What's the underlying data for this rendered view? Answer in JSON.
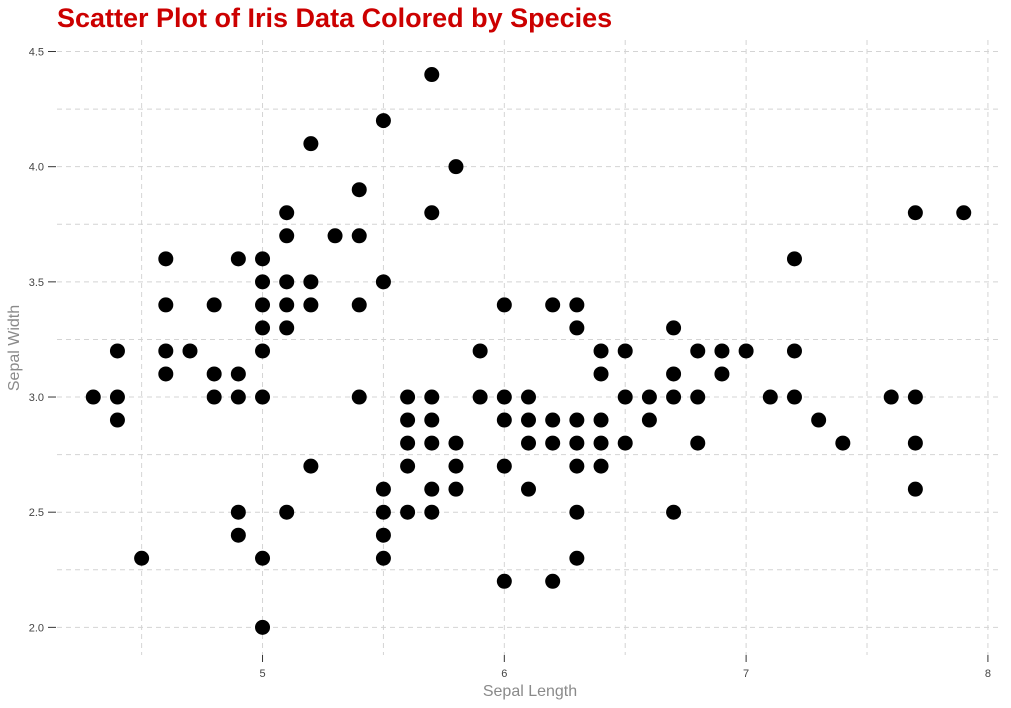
{
  "chart_data": {
    "type": "scatter",
    "title": "Scatter Plot of Iris Data Colored by Species",
    "xlabel": "Sepal Length",
    "ylabel": "Sepal Width",
    "xlim": [
      4.15,
      8.05
    ],
    "ylim": [
      1.88,
      4.55
    ],
    "xticks": [
      5,
      6,
      7,
      8
    ],
    "xtick_labels": [
      "5",
      "6",
      "7",
      "8"
    ],
    "yticks": [
      2.0,
      2.5,
      3.0,
      3.5,
      4.0,
      4.5
    ],
    "ytick_labels": [
      "2.0",
      "2.5",
      "3.0",
      "3.5",
      "4.0",
      "4.5"
    ],
    "x_minor_grid": [
      4.5,
      5.5,
      6.5,
      7.5
    ],
    "y_minor_grid": [
      2.25,
      2.75,
      3.25,
      3.75,
      4.25
    ],
    "grid": true,
    "point_color": "#000000",
    "title_color": "#cc0000",
    "points": [
      [
        4.3,
        3.0
      ],
      [
        4.4,
        3.2
      ],
      [
        4.4,
        3.0
      ],
      [
        4.4,
        2.9
      ],
      [
        4.5,
        2.3
      ],
      [
        4.6,
        3.6
      ],
      [
        4.6,
        3.4
      ],
      [
        4.6,
        3.2
      ],
      [
        4.6,
        3.1
      ],
      [
        4.7,
        3.2
      ],
      [
        4.8,
        3.4
      ],
      [
        4.8,
        3.1
      ],
      [
        4.8,
        3.0
      ],
      [
        4.9,
        3.6
      ],
      [
        4.9,
        3.1
      ],
      [
        4.9,
        3.0
      ],
      [
        4.9,
        2.5
      ],
      [
        4.9,
        2.4
      ],
      [
        5.0,
        3.6
      ],
      [
        5.0,
        3.5
      ],
      [
        5.0,
        3.4
      ],
      [
        5.0,
        3.3
      ],
      [
        5.0,
        3.2
      ],
      [
        5.0,
        3.0
      ],
      [
        5.0,
        2.3
      ],
      [
        5.0,
        2.0
      ],
      [
        5.1,
        3.8
      ],
      [
        5.1,
        3.7
      ],
      [
        5.1,
        3.5
      ],
      [
        5.1,
        3.4
      ],
      [
        5.1,
        3.3
      ],
      [
        5.1,
        2.5
      ],
      [
        5.2,
        4.1
      ],
      [
        5.2,
        3.5
      ],
      [
        5.2,
        3.4
      ],
      [
        5.2,
        2.7
      ],
      [
        5.3,
        3.7
      ],
      [
        5.4,
        3.9
      ],
      [
        5.4,
        3.7
      ],
      [
        5.4,
        3.4
      ],
      [
        5.4,
        3.0
      ],
      [
        5.5,
        4.2
      ],
      [
        5.5,
        3.5
      ],
      [
        5.5,
        2.6
      ],
      [
        5.5,
        2.5
      ],
      [
        5.5,
        2.4
      ],
      [
        5.5,
        2.3
      ],
      [
        5.6,
        3.0
      ],
      [
        5.6,
        2.9
      ],
      [
        5.6,
        2.8
      ],
      [
        5.6,
        2.7
      ],
      [
        5.6,
        2.5
      ],
      [
        5.7,
        4.4
      ],
      [
        5.7,
        3.8
      ],
      [
        5.7,
        3.0
      ],
      [
        5.7,
        2.9
      ],
      [
        5.7,
        2.8
      ],
      [
        5.7,
        2.6
      ],
      [
        5.7,
        2.5
      ],
      [
        5.8,
        4.0
      ],
      [
        5.8,
        2.8
      ],
      [
        5.8,
        2.7
      ],
      [
        5.8,
        2.6
      ],
      [
        5.9,
        3.2
      ],
      [
        5.9,
        3.0
      ],
      [
        6.0,
        3.4
      ],
      [
        6.0,
        3.0
      ],
      [
        6.0,
        2.9
      ],
      [
        6.0,
        2.7
      ],
      [
        6.0,
        2.2
      ],
      [
        6.1,
        3.0
      ],
      [
        6.1,
        2.9
      ],
      [
        6.1,
        2.8
      ],
      [
        6.1,
        2.6
      ],
      [
        6.2,
        3.4
      ],
      [
        6.2,
        2.9
      ],
      [
        6.2,
        2.8
      ],
      [
        6.2,
        2.2
      ],
      [
        6.3,
        3.4
      ],
      [
        6.3,
        3.3
      ],
      [
        6.3,
        2.9
      ],
      [
        6.3,
        2.8
      ],
      [
        6.3,
        2.7
      ],
      [
        6.3,
        2.5
      ],
      [
        6.3,
        2.3
      ],
      [
        6.4,
        3.2
      ],
      [
        6.4,
        3.1
      ],
      [
        6.4,
        2.9
      ],
      [
        6.4,
        2.8
      ],
      [
        6.4,
        2.7
      ],
      [
        6.5,
        3.2
      ],
      [
        6.5,
        3.0
      ],
      [
        6.5,
        2.8
      ],
      [
        6.6,
        3.0
      ],
      [
        6.6,
        2.9
      ],
      [
        6.7,
        3.3
      ],
      [
        6.7,
        3.1
      ],
      [
        6.7,
        3.0
      ],
      [
        6.7,
        2.5
      ],
      [
        6.8,
        3.2
      ],
      [
        6.8,
        3.0
      ],
      [
        6.8,
        2.8
      ],
      [
        6.9,
        3.2
      ],
      [
        6.9,
        3.1
      ],
      [
        7.0,
        3.2
      ],
      [
        7.1,
        3.0
      ],
      [
        7.2,
        3.6
      ],
      [
        7.2,
        3.2
      ],
      [
        7.2,
        3.0
      ],
      [
        7.3,
        2.9
      ],
      [
        7.4,
        2.8
      ],
      [
        7.6,
        3.0
      ],
      [
        7.7,
        3.8
      ],
      [
        7.7,
        3.0
      ],
      [
        7.7,
        2.8
      ],
      [
        7.7,
        2.6
      ],
      [
        7.9,
        3.8
      ]
    ]
  }
}
